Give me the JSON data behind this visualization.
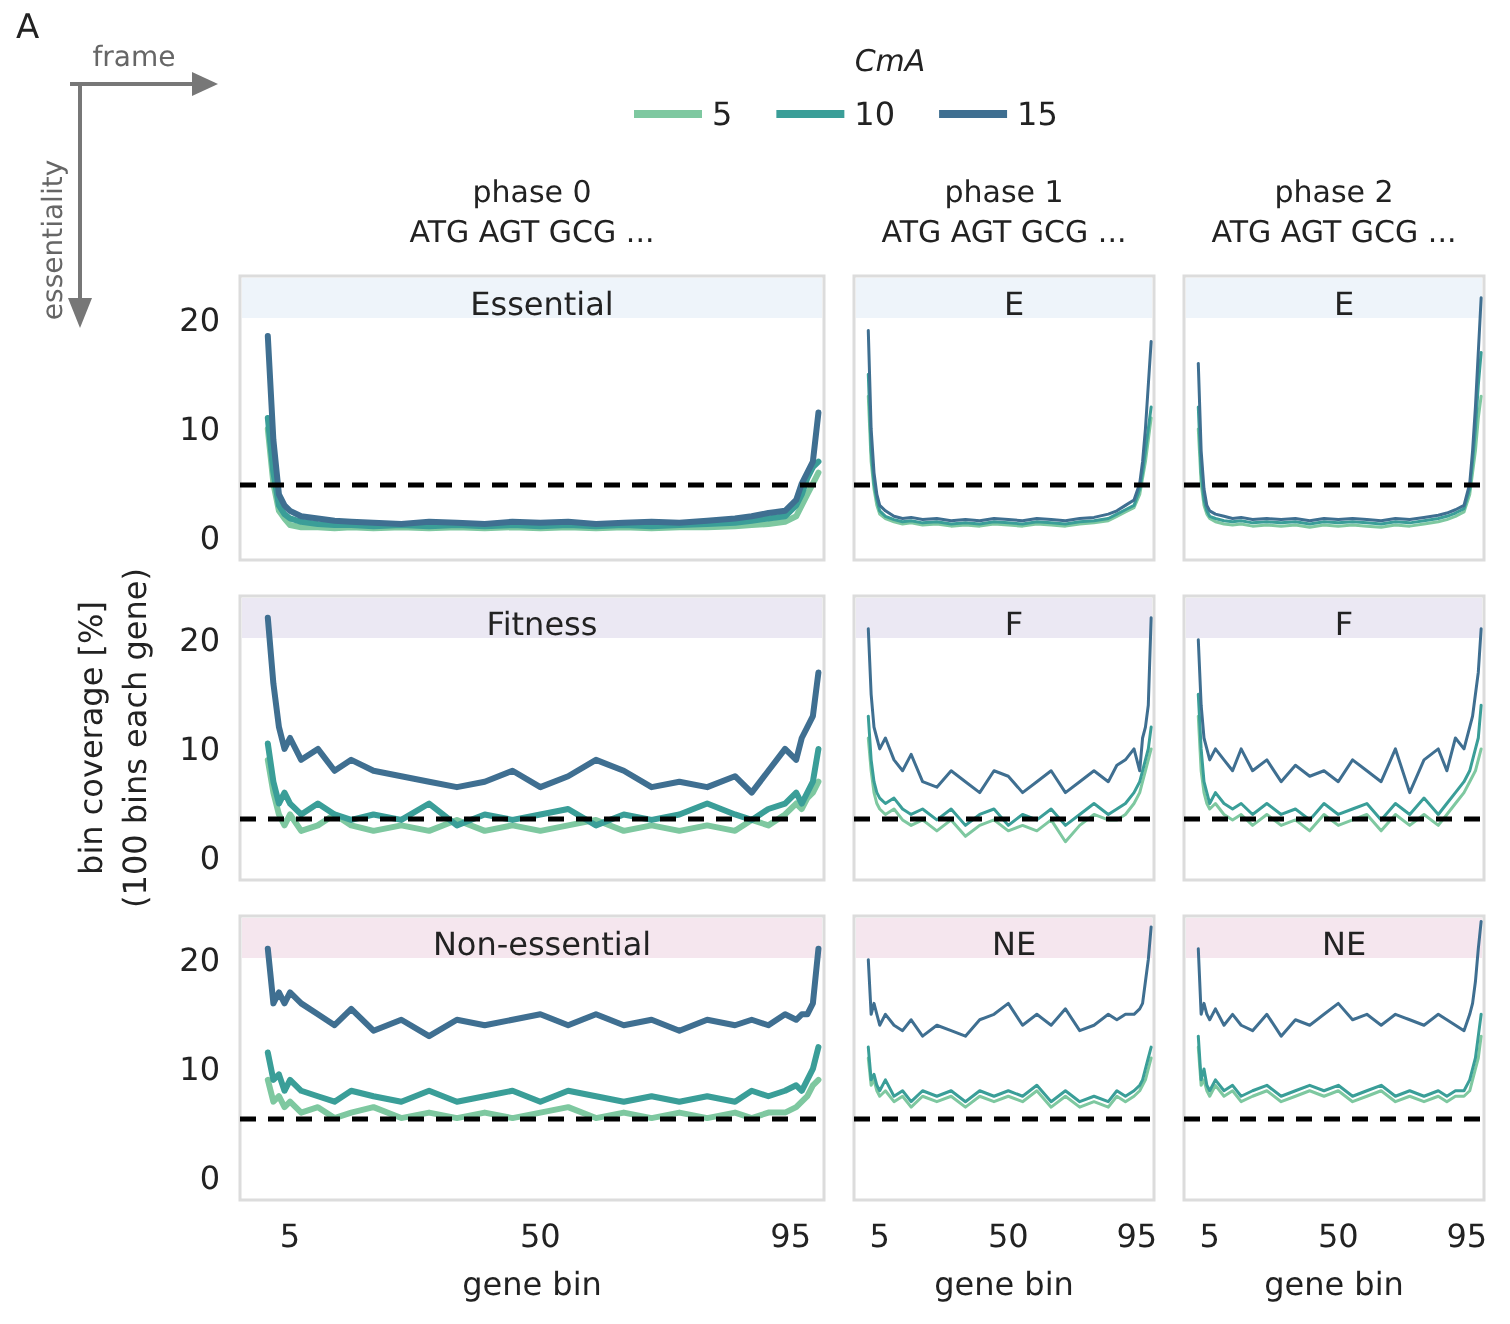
{
  "chart_data": [
    {
      "type": "line",
      "title": "Essential",
      "annotations": [
        "A",
        "frame",
        "essentiality",
        "phase 0",
        "ATG AGT GCG ..."
      ],
      "legend_title": "CmA",
      "legend": "top",
      "tick_labels": "y",
      "grid": false,
      "marker": "none",
      "line_style": "solid",
      "x": [
        1,
        2,
        3,
        4,
        5,
        7,
        10,
        13,
        16,
        20,
        25,
        30,
        35,
        40,
        45,
        50,
        55,
        60,
        65,
        70,
        75,
        80,
        85,
        88,
        91,
        94,
        96,
        97,
        98,
        99,
        100
      ],
      "xlim": [
        -4,
        101
      ],
      "xticks": [
        5,
        50,
        95
      ],
      "ylim": [
        -2,
        24
      ],
      "yticks": [
        0,
        10,
        20
      ],
      "ref_lines": [
        {
          "axis": "y",
          "value": 5,
          "color": "#000000",
          "line_style": "dashed"
        }
      ],
      "series": [
        {
          "name": "5",
          "color": "#7ec8a0",
          "values": [
            10,
            5,
            2.5,
            1.8,
            1.2,
            1,
            1,
            0.9,
            1,
            0.9,
            1,
            0.9,
            1,
            0.9,
            1,
            0.9,
            1,
            0.9,
            1,
            0.9,
            1,
            1,
            1.1,
            1.2,
            1.3,
            1.5,
            2,
            3,
            4,
            5,
            6
          ]
        },
        {
          "name": "10",
          "color": "#3a9e98",
          "values": [
            11,
            6,
            3,
            2.2,
            1.8,
            1.5,
            1.3,
            1.2,
            1.2,
            1.1,
            1.2,
            1.1,
            1.2,
            1.1,
            1.2,
            1.1,
            1.2,
            1.1,
            1.2,
            1.1,
            1.2,
            1.3,
            1.4,
            1.6,
            1.8,
            2,
            3,
            4,
            5.5,
            6.5,
            7
          ]
        },
        {
          "name": "15",
          "color": "#3f6f91",
          "values": [
            18.5,
            9,
            4,
            3,
            2.5,
            2,
            1.8,
            1.6,
            1.5,
            1.4,
            1.3,
            1.5,
            1.4,
            1.3,
            1.5,
            1.4,
            1.5,
            1.3,
            1.4,
            1.5,
            1.4,
            1.6,
            1.8,
            2,
            2.3,
            2.5,
            3.5,
            5,
            6,
            7,
            11.5
          ]
        }
      ]
    },
    {
      "type": "line",
      "title": "E",
      "annotations": [
        "phase 1",
        "ATG AGT GCG ..."
      ],
      "tick_labels": false,
      "grid": false,
      "marker": "none",
      "line_style": "solid",
      "x": [
        1,
        2,
        3,
        4,
        5,
        7,
        10,
        13,
        16,
        20,
        25,
        30,
        35,
        40,
        45,
        50,
        55,
        60,
        65,
        70,
        75,
        80,
        85,
        88,
        91,
        94,
        96,
        97,
        98,
        99,
        100
      ],
      "xlim": [
        -4,
        101
      ],
      "xticks": [
        5,
        50,
        95
      ],
      "ylim": [
        -2,
        24
      ],
      "yticks": [
        0,
        10,
        20
      ],
      "ref_lines": [
        {
          "axis": "y",
          "value": 5,
          "color": "#000000",
          "line_style": "dashed"
        }
      ],
      "series": [
        {
          "color": "#7ec8a0",
          "values": [
            13,
            7,
            4.5,
            3,
            2.2,
            1.8,
            1.5,
            1.3,
            1.4,
            1.2,
            1.3,
            1.1,
            1.2,
            1.1,
            1.3,
            1.2,
            1.1,
            1.3,
            1.2,
            1.1,
            1.3,
            1.4,
            1.6,
            2,
            2.4,
            2.8,
            4,
            5.5,
            7,
            9,
            11
          ]
        },
        {
          "color": "#3a9e98",
          "values": [
            15,
            8,
            5,
            3.5,
            2.5,
            2,
            1.7,
            1.5,
            1.6,
            1.4,
            1.5,
            1.3,
            1.4,
            1.3,
            1.5,
            1.4,
            1.3,
            1.5,
            1.4,
            1.3,
            1.5,
            1.6,
            1.8,
            2.2,
            2.6,
            3,
            4.5,
            6,
            8,
            10,
            12
          ]
        },
        {
          "color": "#3f6f91",
          "values": [
            19,
            10,
            6,
            4,
            3,
            2.5,
            2,
            1.8,
            1.9,
            1.7,
            1.8,
            1.6,
            1.7,
            1.6,
            1.8,
            1.7,
            1.6,
            1.8,
            1.7,
            1.6,
            1.8,
            1.9,
            2.2,
            2.5,
            3,
            3.5,
            5,
            7,
            10,
            14,
            18
          ]
        }
      ]
    },
    {
      "type": "line",
      "title": "E",
      "annotations": [
        "phase 2",
        "ATG AGT GCG ..."
      ],
      "tick_labels": false,
      "grid": false,
      "marker": "none",
      "line_style": "solid",
      "x": [
        1,
        2,
        3,
        4,
        5,
        7,
        10,
        13,
        16,
        20,
        25,
        30,
        35,
        40,
        45,
        50,
        55,
        60,
        65,
        70,
        75,
        80,
        85,
        88,
        91,
        94,
        96,
        97,
        98,
        99,
        100
      ],
      "xlim": [
        -4,
        101
      ],
      "xticks": [
        5,
        50,
        95
      ],
      "ylim": [
        -2,
        24
      ],
      "yticks": [
        0,
        10,
        20
      ],
      "ref_lines": [
        {
          "axis": "y",
          "value": 5,
          "color": "#000000",
          "line_style": "dashed"
        }
      ],
      "series": [
        {
          "color": "#7ec8a0",
          "values": [
            10,
            5,
            3,
            2.2,
            1.8,
            1.5,
            1.3,
            1.2,
            1.3,
            1.1,
            1.2,
            1.1,
            1.2,
            1.0,
            1.2,
            1.1,
            1.2,
            1.1,
            1.0,
            1.2,
            1.1,
            1.3,
            1.5,
            1.7,
            2,
            2.4,
            4,
            6,
            8,
            11,
            13
          ]
        },
        {
          "color": "#3a9e98",
          "values": [
            12,
            6,
            3.5,
            2.5,
            2,
            1.8,
            1.6,
            1.5,
            1.6,
            1.4,
            1.5,
            1.4,
            1.5,
            1.3,
            1.5,
            1.4,
            1.5,
            1.4,
            1.3,
            1.5,
            1.4,
            1.6,
            1.8,
            2,
            2.3,
            2.7,
            4.5,
            7,
            10,
            14,
            17
          ]
        },
        {
          "color": "#3f6f91",
          "values": [
            16,
            8,
            4.5,
            3,
            2.5,
            2.2,
            2,
            1.8,
            1.9,
            1.7,
            1.8,
            1.7,
            1.8,
            1.6,
            1.8,
            1.7,
            1.8,
            1.7,
            1.6,
            1.8,
            1.7,
            1.9,
            2.1,
            2.3,
            2.6,
            3,
            5,
            8,
            12,
            17,
            22
          ]
        }
      ]
    },
    {
      "type": "line",
      "title": "Fitness",
      "ylabel": "bin coverage [%]\n(100 bins each gene)",
      "tick_labels": "y",
      "grid": false,
      "marker": "none",
      "line_style": "solid",
      "x": [
        1,
        2,
        3,
        4,
        5,
        7,
        10,
        13,
        16,
        20,
        25,
        30,
        35,
        40,
        45,
        50,
        55,
        60,
        65,
        70,
        75,
        80,
        85,
        88,
        91,
        94,
        96,
        97,
        98,
        99,
        100
      ],
      "xlim": [
        -4,
        101
      ],
      "xticks": [
        5,
        50,
        95
      ],
      "ylim": [
        -2,
        24
      ],
      "yticks": [
        0,
        10,
        20
      ],
      "ref_lines": [
        {
          "axis": "y",
          "value": 3.7,
          "color": "#000000",
          "line_style": "dashed"
        }
      ],
      "series": [
        {
          "color": "#7ec8a0",
          "values": [
            9,
            6,
            4,
            3,
            4,
            2.5,
            3,
            4,
            3,
            2.5,
            3,
            2.5,
            3.5,
            2.5,
            3,
            2.5,
            3,
            3.5,
            2.5,
            3,
            2.5,
            3,
            2.5,
            3.5,
            3,
            4,
            5,
            4.5,
            5.5,
            6,
            7
          ]
        },
        {
          "color": "#3a9e98",
          "values": [
            10.5,
            7,
            5,
            6,
            5,
            4,
            5,
            4,
            3.5,
            4,
            3.5,
            5,
            3,
            4,
            3.5,
            4,
            4.5,
            3,
            4,
            3.5,
            4,
            5,
            4,
            3.5,
            4.5,
            5,
            6,
            5,
            6,
            7,
            10
          ]
        },
        {
          "color": "#3f6f91",
          "values": [
            22,
            16,
            12,
            10,
            11,
            9,
            10,
            8,
            9,
            8,
            7.5,
            7,
            6.5,
            7,
            8,
            6.5,
            7.5,
            9,
            8,
            6.5,
            7,
            6.5,
            7.5,
            6,
            8,
            10,
            9,
            11,
            12,
            13,
            17
          ]
        }
      ]
    },
    {
      "type": "line",
      "title": "F",
      "tick_labels": false,
      "grid": false,
      "marker": "none",
      "line_style": "solid",
      "x": [
        1,
        2,
        3,
        4,
        5,
        7,
        10,
        13,
        16,
        20,
        25,
        30,
        35,
        40,
        45,
        50,
        55,
        60,
        65,
        70,
        75,
        80,
        85,
        88,
        91,
        94,
        96,
        97,
        98,
        99,
        100
      ],
      "xlim": [
        -4,
        101
      ],
      "xticks": [
        5,
        50,
        95
      ],
      "ylim": [
        -2,
        24
      ],
      "yticks": [
        0,
        10,
        20
      ],
      "ref_lines": [
        {
          "axis": "y",
          "value": 3.7,
          "color": "#000000",
          "line_style": "dashed"
        }
      ],
      "series": [
        {
          "color": "#7ec8a0",
          "values": [
            11,
            8,
            6,
            5,
            4.5,
            4,
            4.5,
            3.5,
            3,
            3.5,
            2.5,
            3.5,
            2,
            3,
            3.5,
            2.5,
            3,
            2.5,
            3.5,
            1.5,
            3,
            4,
            3.5,
            3.5,
            4,
            5,
            6,
            7,
            8,
            9,
            10
          ]
        },
        {
          "color": "#3a9e98",
          "values": [
            13,
            9,
            7,
            6,
            5.5,
            5,
            5.5,
            4.5,
            4,
            4.5,
            3.5,
            4.5,
            3,
            4,
            4.5,
            3,
            4,
            3.5,
            4.5,
            3,
            4,
            5,
            4,
            4.5,
            5,
            6,
            7,
            8,
            9,
            10,
            12
          ]
        },
        {
          "color": "#3f6f91",
          "values": [
            21,
            15,
            12,
            11,
            10,
            11,
            9,
            8,
            9.5,
            7,
            6.5,
            8,
            7,
            6,
            8,
            7.5,
            6,
            7,
            8,
            6,
            7,
            8,
            7,
            8.5,
            9,
            10,
            8,
            11,
            12,
            14,
            22
          ]
        }
      ]
    },
    {
      "type": "line",
      "title": "F",
      "tick_labels": false,
      "grid": false,
      "marker": "none",
      "line_style": "solid",
      "x": [
        1,
        2,
        3,
        4,
        5,
        7,
        10,
        13,
        16,
        20,
        25,
        30,
        35,
        40,
        45,
        50,
        55,
        60,
        65,
        70,
        75,
        80,
        85,
        88,
        91,
        94,
        96,
        97,
        98,
        99,
        100
      ],
      "xlim": [
        -4,
        101
      ],
      "xticks": [
        5,
        50,
        95
      ],
      "ylim": [
        -2,
        24
      ],
      "yticks": [
        0,
        10,
        20
      ],
      "ref_lines": [
        {
          "axis": "y",
          "value": 3.7,
          "color": "#000000",
          "line_style": "dashed"
        }
      ],
      "series": [
        {
          "color": "#7ec8a0",
          "values": [
            13,
            8,
            6,
            5,
            4.5,
            5,
            4,
            3.5,
            4,
            3,
            4,
            3,
            3.5,
            2.5,
            4,
            3,
            3.5,
            4,
            2.5,
            4,
            3,
            4,
            3,
            4,
            5,
            6,
            7,
            7.5,
            8,
            9,
            10
          ]
        },
        {
          "color": "#3a9e98",
          "values": [
            15,
            10,
            7,
            6,
            5,
            6,
            5,
            4.5,
            5,
            4,
            5,
            4,
            4.5,
            3.5,
            5,
            4,
            4.5,
            5,
            3.5,
            5,
            4,
            5.5,
            4,
            5,
            6,
            7,
            8,
            9,
            10,
            11,
            14
          ]
        },
        {
          "color": "#3f6f91",
          "values": [
            20,
            14,
            11,
            10,
            9,
            10,
            9,
            8,
            10,
            8,
            9,
            7,
            8.5,
            7.5,
            8,
            7,
            9,
            8,
            7,
            10,
            6,
            9,
            10,
            8,
            11,
            10,
            12,
            13,
            15,
            17,
            21
          ]
        }
      ]
    },
    {
      "type": "line",
      "title": "Non-essential",
      "xlabel": "gene bin",
      "grid": false,
      "marker": "none",
      "line_style": "solid",
      "x": [
        1,
        2,
        3,
        4,
        5,
        7,
        10,
        13,
        16,
        20,
        25,
        30,
        35,
        40,
        45,
        50,
        55,
        60,
        65,
        70,
        75,
        80,
        85,
        88,
        91,
        94,
        96,
        97,
        98,
        99,
        100
      ],
      "xlim": [
        -4,
        101
      ],
      "xticks": [
        5,
        50,
        95
      ],
      "ylim": [
        -2,
        24
      ],
      "yticks": [
        0,
        10,
        20
      ],
      "ref_lines": [
        {
          "axis": "y",
          "value": 5.5,
          "color": "#000000",
          "line_style": "dashed"
        }
      ],
      "series": [
        {
          "color": "#7ec8a0",
          "values": [
            9,
            7,
            7.5,
            6.5,
            7,
            6,
            6.5,
            5.5,
            6,
            6.5,
            5.5,
            6,
            5.5,
            6,
            5.5,
            6,
            6.5,
            5.5,
            6,
            5.5,
            6,
            5.5,
            6,
            5.5,
            6,
            6,
            6.5,
            7,
            7.5,
            8.5,
            9
          ]
        },
        {
          "color": "#3a9e98",
          "values": [
            11.5,
            9,
            9.5,
            8,
            9,
            8,
            7.5,
            7,
            8,
            7.5,
            7,
            8,
            7,
            7.5,
            8,
            7,
            8,
            7.5,
            7,
            7.5,
            7,
            7.5,
            7,
            8,
            7.5,
            8,
            8.5,
            8,
            9,
            10,
            12
          ]
        },
        {
          "color": "#3f6f91",
          "values": [
            21,
            16,
            17,
            16,
            17,
            16,
            15,
            14,
            15.5,
            13.5,
            14.5,
            13,
            14.5,
            14,
            14.5,
            15,
            14,
            15,
            14,
            14.5,
            13.5,
            14.5,
            14,
            14.5,
            14,
            15,
            14.5,
            15,
            15,
            16,
            21
          ]
        }
      ]
    },
    {
      "type": "line",
      "title": "NE",
      "xlabel": "gene bin",
      "tick_labels": "x",
      "grid": false,
      "marker": "none",
      "line_style": "solid",
      "x": [
        1,
        2,
        3,
        4,
        5,
        7,
        10,
        13,
        16,
        20,
        25,
        30,
        35,
        40,
        45,
        50,
        55,
        60,
        65,
        70,
        75,
        80,
        85,
        88,
        91,
        94,
        96,
        97,
        98,
        99,
        100
      ],
      "xlim": [
        -4,
        101
      ],
      "xticks": [
        5,
        50,
        95
      ],
      "ylim": [
        -2,
        24
      ],
      "yticks": [
        0,
        10,
        20
      ],
      "ref_lines": [
        {
          "axis": "y",
          "value": 5.5,
          "color": "#000000",
          "line_style": "dashed"
        }
      ],
      "series": [
        {
          "color": "#7ec8a0",
          "values": [
            11,
            8.5,
            9,
            8,
            7.5,
            8,
            7,
            7.5,
            6.5,
            7.5,
            7,
            7.5,
            6.5,
            7.5,
            7,
            7.5,
            7,
            8,
            6.5,
            7.5,
            6.5,
            7,
            6.5,
            7.5,
            7,
            7.5,
            8,
            8.5,
            9,
            10,
            11
          ]
        },
        {
          "color": "#3a9e98",
          "values": [
            12,
            9,
            9.5,
            8.5,
            8,
            9,
            7.5,
            8,
            7,
            8,
            7.5,
            8,
            7,
            8,
            7.5,
            8,
            7.5,
            8.5,
            7,
            8,
            7,
            7.5,
            7,
            8,
            7.5,
            8,
            8.5,
            9,
            10,
            11,
            12
          ]
        },
        {
          "color": "#3f6f91",
          "values": [
            20,
            15,
            16,
            15,
            14,
            15,
            14,
            13.5,
            14.5,
            13,
            14,
            13.5,
            13,
            14.5,
            15,
            16,
            14,
            15,
            14,
            15.5,
            13.5,
            14,
            15,
            14.5,
            15,
            15,
            15.5,
            16,
            18,
            20,
            23
          ]
        }
      ]
    },
    {
      "type": "line",
      "title": "NE",
      "xlabel": "gene bin",
      "tick_labels": "x",
      "grid": false,
      "marker": "none",
      "line_style": "solid",
      "x": [
        1,
        2,
        3,
        4,
        5,
        7,
        10,
        13,
        16,
        20,
        25,
        30,
        35,
        40,
        45,
        50,
        55,
        60,
        65,
        70,
        75,
        80,
        85,
        88,
        91,
        94,
        96,
        97,
        98,
        99,
        100
      ],
      "xlim": [
        -4,
        101
      ],
      "xticks": [
        5,
        50,
        95
      ],
      "ylim": [
        -2,
        24
      ],
      "yticks": [
        0,
        10,
        20
      ],
      "ref_lines": [
        {
          "axis": "y",
          "value": 5.5,
          "color": "#000000",
          "line_style": "dashed"
        }
      ],
      "series": [
        {
          "color": "#7ec8a0",
          "values": [
            12,
            8.5,
            9,
            8,
            7.5,
            8.5,
            7.5,
            8,
            7,
            7.5,
            8,
            7,
            7.5,
            8,
            7.5,
            8,
            7,
            7.5,
            8,
            7,
            7.5,
            7,
            7.5,
            7,
            7.5,
            7.5,
            8,
            9,
            10,
            11,
            13
          ]
        },
        {
          "color": "#3a9e98",
          "values": [
            13,
            9,
            10,
            8.5,
            8,
            9,
            8,
            8.5,
            7.5,
            8,
            8.5,
            7.5,
            8,
            8.5,
            8,
            8.5,
            7.5,
            8,
            8.5,
            7.5,
            8,
            7.5,
            8,
            7.5,
            8,
            8,
            9,
            10,
            11,
            13,
            15
          ]
        },
        {
          "color": "#3f6f91",
          "values": [
            21,
            15,
            16,
            15,
            14.5,
            15.5,
            14,
            15,
            14,
            13.5,
            15,
            13,
            14.5,
            14,
            15,
            16,
            14.5,
            15,
            14,
            15,
            14.5,
            14,
            15,
            14.5,
            14,
            13.5,
            15,
            16,
            18,
            21,
            23.5
          ]
        }
      ]
    }
  ]
}
